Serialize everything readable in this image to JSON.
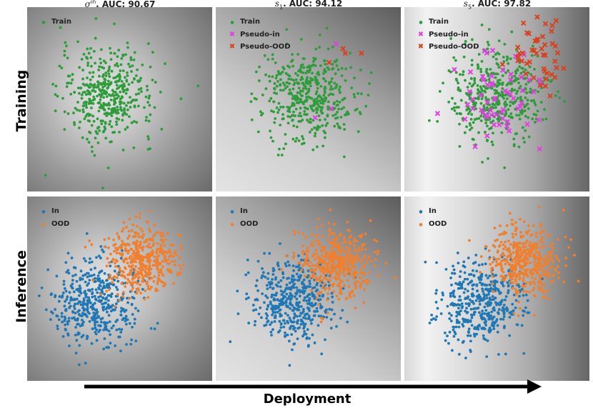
{
  "chart_data": [
    {
      "type": "scatter",
      "panel": "training-sigma-in",
      "title_symbol": "σ",
      "title_sup": "in",
      "title": ". AUC: 90.67",
      "row": "Training",
      "background": "radial",
      "series": [
        {
          "name": "Train",
          "color": "#2e9c3b",
          "marker": "dot",
          "center": [
            -0.5,
            0.2
          ],
          "spread": 1.0,
          "count": 450
        }
      ]
    },
    {
      "type": "scatter",
      "panel": "training-s1",
      "title_symbol": "s",
      "title_sub": "1",
      "title": ". AUC: 94.12",
      "row": "Training",
      "background": "diagonal",
      "series": [
        {
          "name": "Train",
          "color": "#2e9c3b",
          "marker": "dot",
          "center": [
            0,
            0.2
          ],
          "spread": 1.0,
          "count": 450
        },
        {
          "name": "Pseudo-in",
          "color": "#e040e0",
          "marker": "x",
          "points": [
            [
              1.2,
              2.4
            ],
            [
              1.0,
              -0.4
            ],
            [
              0.3,
              -0.8
            ]
          ]
        },
        {
          "name": "Pseudo-OOD",
          "color": "#d9411e",
          "marker": "x",
          "points": [
            [
              1.6,
              2.0
            ],
            [
              2.3,
              2.0
            ],
            [
              0.9,
              1.6
            ],
            [
              1.5,
              2.2
            ]
          ]
        }
      ]
    },
    {
      "type": "scatter",
      "panel": "training-s5",
      "title_symbol": "s",
      "title_sub": "5",
      "title": ". AUC: 97.82",
      "row": "Training",
      "background": "left-band",
      "series": [
        {
          "name": "Train",
          "color": "#2e9c3b",
          "marker": "dot",
          "center": [
            0,
            0.2
          ],
          "spread": 1.0,
          "count": 450
        },
        {
          "name": "Pseudo-in",
          "color": "#e040e0",
          "marker": "x",
          "center": [
            0,
            0
          ],
          "spread": 1.0,
          "count": 60
        },
        {
          "name": "Pseudo-OOD",
          "color": "#d9411e",
          "marker": "x",
          "center": [
            1.9,
            1.8
          ],
          "spread": 0.8,
          "count": 45
        }
      ]
    },
    {
      "type": "scatter",
      "panel": "inference-sigma-in",
      "row": "Inference",
      "background": "radial",
      "series": [
        {
          "name": "In",
          "color": "#1f77b4",
          "marker": "dot",
          "center": [
            -1.0,
            -0.6
          ],
          "spread": 0.9,
          "count": 450
        },
        {
          "name": "OOD",
          "color": "#f07f2e",
          "marker": "dot",
          "center": [
            0.9,
            1.2
          ],
          "spread": 0.75,
          "count": 450
        }
      ]
    },
    {
      "type": "scatter",
      "panel": "inference-s1",
      "row": "Inference",
      "background": "diagonal",
      "series": [
        {
          "name": "In",
          "color": "#1f77b4",
          "marker": "dot",
          "center": [
            -0.7,
            -0.6
          ],
          "spread": 0.9,
          "count": 450
        },
        {
          "name": "OOD",
          "color": "#f07f2e",
          "marker": "dot",
          "center": [
            1.2,
            1.2
          ],
          "spread": 0.75,
          "count": 450
        }
      ]
    },
    {
      "type": "scatter",
      "panel": "inference-s5",
      "row": "Inference",
      "background": "left-band",
      "series": [
        {
          "name": "In",
          "color": "#1f77b4",
          "marker": "dot",
          "center": [
            -0.7,
            -0.6
          ],
          "spread": 0.9,
          "count": 450
        },
        {
          "name": "OOD",
          "color": "#f07f2e",
          "marker": "dot",
          "center": [
            1.2,
            1.2
          ],
          "spread": 0.75,
          "count": 450
        }
      ]
    }
  ],
  "row_labels": [
    "Training",
    "Inference"
  ],
  "xlabel": "Deployment",
  "axes": {
    "xlim": [
      -4,
      4
    ],
    "ylim": [
      -4,
      4
    ],
    "ticks": false,
    "grid": false,
    "legend": "top-left"
  }
}
